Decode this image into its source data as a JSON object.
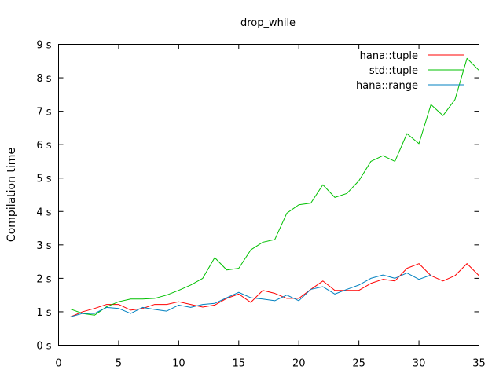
{
  "chart_data": {
    "type": "line",
    "title": "drop_while",
    "xlabel": "",
    "ylabel": "Compilation time",
    "xlim": [
      0,
      35
    ],
    "ylim": [
      0,
      9
    ],
    "x_ticks": [
      0,
      5,
      10,
      15,
      20,
      25,
      30,
      35
    ],
    "y_ticks": [
      0,
      1,
      2,
      3,
      4,
      5,
      6,
      7,
      8,
      9
    ],
    "y_tick_labels": [
      "0 s",
      "1 s",
      "2 s",
      "3 s",
      "4 s",
      "5 s",
      "6 s",
      "7 s",
      "8 s",
      "9 s"
    ],
    "grid": false,
    "legend": "top-right",
    "x": [
      1,
      2,
      3,
      4,
      5,
      6,
      7,
      8,
      9,
      10,
      11,
      12,
      13,
      14,
      15,
      16,
      17,
      18,
      19,
      20,
      21,
      22,
      23,
      24,
      25,
      26,
      27,
      28,
      29,
      30,
      31,
      32,
      33,
      34,
      35
    ],
    "series": [
      {
        "name": "hana::tuple",
        "color": "#ff0000",
        "values": [
          0.85,
          1.0,
          1.1,
          1.22,
          1.22,
          1.05,
          1.1,
          1.22,
          1.22,
          1.3,
          1.22,
          1.14,
          1.2,
          1.4,
          1.53,
          1.28,
          1.64,
          1.55,
          1.4,
          1.4,
          1.67,
          1.92,
          1.64,
          1.64,
          1.64,
          1.85,
          1.97,
          1.92,
          2.3,
          2.44,
          2.08,
          1.92,
          2.08,
          2.44,
          2.08
        ]
      },
      {
        "name": "std::tuple",
        "color": "#00c000",
        "values": [
          1.08,
          0.95,
          0.9,
          1.15,
          1.3,
          1.38,
          1.38,
          1.4,
          1.5,
          1.64,
          1.8,
          2.0,
          2.62,
          2.25,
          2.3,
          2.85,
          3.08,
          3.16,
          3.95,
          4.2,
          4.25,
          4.8,
          4.42,
          4.54,
          4.92,
          5.5,
          5.67,
          5.5,
          6.33,
          6.03,
          7.2,
          6.87,
          7.35,
          8.58,
          8.22
        ]
      },
      {
        "name": "hana::range",
        "color": "#0080c0",
        "values": [
          0.85,
          0.95,
          0.95,
          1.13,
          1.1,
          0.95,
          1.13,
          1.07,
          1.02,
          1.2,
          1.13,
          1.22,
          1.25,
          1.42,
          1.58,
          1.42,
          1.38,
          1.33,
          1.5,
          1.33,
          1.67,
          1.75,
          1.53,
          1.67,
          1.8,
          2.0,
          2.1,
          2.0,
          2.16,
          1.97,
          2.1,
          null,
          null,
          null,
          null
        ]
      }
    ]
  }
}
